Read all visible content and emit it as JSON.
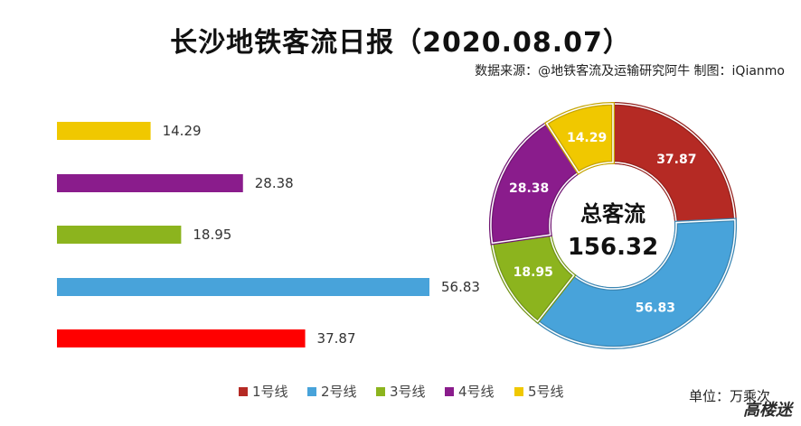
{
  "header": {
    "title": "长沙地铁客流日报（2020.08.07）",
    "source": "数据来源：@地铁客流及运输研究阿牛 制图：iQianmo"
  },
  "footer": {
    "unit": "单位：万乘次",
    "watermark": "高楼迷"
  },
  "center": {
    "label": "总客流",
    "total": "156.32"
  },
  "chart_data": [
    {
      "type": "bar",
      "orientation": "horizontal",
      "categories": [
        "5号线",
        "4号线",
        "3号线",
        "2号线",
        "1号线"
      ],
      "values": [
        14.29,
        28.38,
        18.95,
        56.83,
        37.87
      ],
      "data_labels": [
        "14.29",
        "28.38",
        "18.95",
        "56.83",
        "37.87"
      ],
      "colors": [
        "#f0c800",
        "#8a1c8c",
        "#8cb41e",
        "#48a3da",
        "#ff0000"
      ],
      "title": "",
      "xlabel": "",
      "ylabel": ""
    },
    {
      "type": "pie",
      "style": "donut",
      "categories": [
        "1号线",
        "2号线",
        "3号线",
        "4号线",
        "5号线"
      ],
      "values": [
        37.87,
        56.83,
        18.95,
        28.38,
        14.29
      ],
      "data_labels": [
        "37.87",
        "56.83",
        "18.95",
        "28.38",
        "14.29"
      ],
      "colors": [
        "#b52a24",
        "#48a3da",
        "#8cb41e",
        "#8a1c8c",
        "#f0c800"
      ],
      "start_angle_deg": 0,
      "legend": {
        "position": "bottom",
        "entries": [
          "1号线",
          "2号线",
          "3号线",
          "4号线",
          "5号线"
        ]
      }
    }
  ]
}
